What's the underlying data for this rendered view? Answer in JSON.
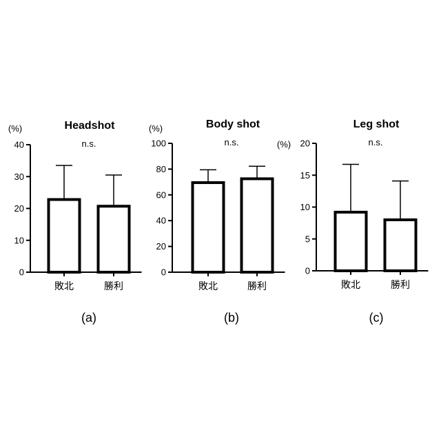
{
  "chart_data": [
    {
      "type": "bar",
      "title": "Headshot",
      "ylabel": "(%)",
      "annotation": "n.s.",
      "caption": "(a)",
      "categories": [
        "敗北",
        "勝利"
      ],
      "values": [
        22.8,
        20.7
      ],
      "errors": [
        10.7,
        9.8
      ],
      "ylim": [
        0,
        40
      ],
      "yticks": [
        0,
        10,
        20,
        30,
        40
      ]
    },
    {
      "type": "bar",
      "title": "Body shot",
      "ylabel": "(%)",
      "annotation": "n.s.",
      "caption": "(b)",
      "categories": [
        "敗北",
        "勝利"
      ],
      "values": [
        69.5,
        72.5
      ],
      "errors": [
        10.0,
        9.7
      ],
      "ylim": [
        0,
        100
      ],
      "yticks": [
        0,
        20,
        40,
        60,
        80,
        100
      ]
    },
    {
      "type": "bar",
      "title": "Leg shot",
      "ylabel": "(%)",
      "annotation": "n.s.",
      "caption": "(c)",
      "categories": [
        "敗北",
        "勝利"
      ],
      "values": [
        9.2,
        8.0
      ],
      "errors": [
        7.5,
        6.1
      ],
      "ylim": [
        0,
        20
      ],
      "yticks": [
        0,
        5,
        10,
        15,
        20
      ]
    }
  ]
}
